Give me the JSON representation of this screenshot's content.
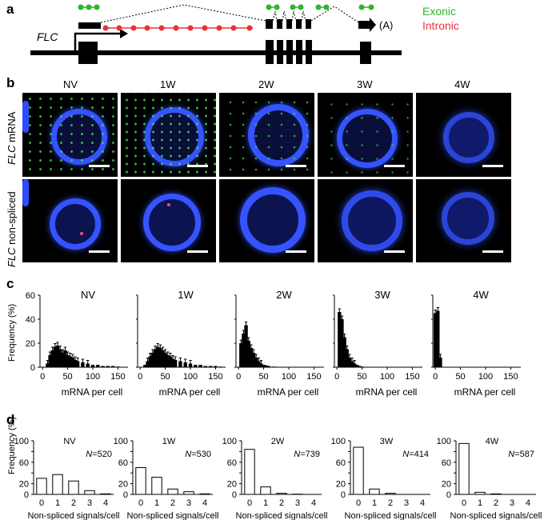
{
  "panel_a": {
    "label": "a",
    "gene": "FLC",
    "polyA": "(A)",
    "legend_exonic": "Exonic",
    "legend_intronic": "Intronic",
    "color_exonic": "#2db52d",
    "color_intronic": "#e8333a"
  },
  "panel_b": {
    "label": "b",
    "conditions": [
      "NV",
      "1W",
      "2W",
      "3W",
      "4W"
    ],
    "row1_label_gene": "FLC",
    "row1_label_rest": " mRNA",
    "row2_label_gene": "FLC",
    "row2_label_rest": " non-spliced",
    "dapi_color": "#2d4cff"
  },
  "panel_c": {
    "label": "c",
    "ylabel": "Frequency (%)",
    "xlabel": "mRNA per cell",
    "chart_data": [
      {
        "type": "bar",
        "title": "NV",
        "x": [
          10,
          15,
          20,
          25,
          30,
          35,
          40,
          45,
          50,
          55,
          60,
          65,
          70,
          80,
          90,
          100,
          110,
          120,
          130,
          140,
          150
        ],
        "values": [
          3,
          10,
          14,
          17,
          18,
          15,
          12,
          14,
          10,
          9,
          8,
          6,
          5,
          4,
          3,
          2,
          2,
          1,
          1,
          1,
          0.5
        ],
        "ylim": [
          0,
          60
        ],
        "xlim": [
          -5,
          170
        ],
        "xticks": [
          0,
          50,
          100,
          150
        ],
        "yticks": [
          0,
          20,
          40,
          60
        ]
      },
      {
        "type": "bar",
        "title": "1W",
        "x": [
          10,
          15,
          20,
          25,
          30,
          35,
          40,
          45,
          50,
          55,
          60,
          65,
          70,
          80,
          90,
          100,
          110,
          120,
          130,
          140,
          150,
          160
        ],
        "values": [
          2,
          5,
          9,
          12,
          15,
          17,
          16,
          14,
          12,
          10,
          9,
          7,
          6,
          5,
          4,
          3,
          2,
          2,
          1,
          1,
          1,
          0.5
        ],
        "ylim": [
          0,
          60
        ],
        "xlim": [
          -5,
          170
        ],
        "xticks": [
          0,
          50,
          100,
          150
        ],
        "yticks": [
          0,
          20,
          40,
          60
        ]
      },
      {
        "type": "bar",
        "title": "2W",
        "x": [
          5,
          10,
          15,
          20,
          25,
          30,
          35,
          40,
          45,
          50,
          55,
          60,
          70,
          80
        ],
        "values": [
          20,
          28,
          35,
          22,
          16,
          12,
          8,
          5,
          3,
          2,
          1.5,
          1,
          0.5,
          0.3
        ],
        "ylim": [
          0,
          60
        ],
        "xlim": [
          -5,
          170
        ],
        "xticks": [
          0,
          50,
          100,
          150
        ],
        "yticks": [
          0,
          20,
          40,
          60
        ]
      },
      {
        "type": "bar",
        "title": "3W",
        "x": [
          5,
          10,
          15,
          20,
          25,
          30,
          35,
          40,
          45,
          50
        ],
        "values": [
          46,
          40,
          25,
          15,
          8,
          5,
          3,
          2,
          1,
          0.5
        ],
        "ylim": [
          0,
          60
        ],
        "xlim": [
          -5,
          170
        ],
        "xticks": [
          0,
          50,
          100,
          150
        ],
        "yticks": [
          0,
          20,
          40,
          60
        ]
      },
      {
        "type": "bar",
        "title": "4W",
        "x": [
          0,
          5,
          10
        ],
        "values": [
          45,
          47,
          8
        ],
        "ylim": [
          0,
          60
        ],
        "xlim": [
          -5,
          170
        ],
        "xticks": [
          0,
          50,
          100,
          150
        ],
        "yticks": [
          0,
          20,
          40,
          60
        ]
      }
    ]
  },
  "panel_d": {
    "label": "d",
    "ylabel": "Frequency (%)",
    "xlabel": "Non-spliced signals/cell",
    "chart_data": [
      {
        "type": "bar",
        "title": "NV",
        "n": "=520",
        "categories": [
          "0",
          "1",
          "2",
          "3",
          "4"
        ],
        "values": [
          30,
          37,
          25,
          7,
          1
        ],
        "ylim": [
          0,
          100
        ],
        "yticks": [
          0,
          20,
          40,
          60,
          80,
          100
        ]
      },
      {
        "type": "bar",
        "title": "1W",
        "n": "=530",
        "categories": [
          "0",
          "1",
          "2",
          "3",
          "4"
        ],
        "values": [
          50,
          32,
          10,
          5,
          1
        ],
        "ylim": [
          0,
          100
        ],
        "yticks": [
          0,
          20,
          40,
          60,
          80,
          100
        ]
      },
      {
        "type": "bar",
        "title": "2W",
        "n": "=739",
        "categories": [
          "0",
          "1",
          "2",
          "3",
          "4"
        ],
        "values": [
          84,
          14,
          2,
          0.5,
          0
        ],
        "ylim": [
          0,
          100
        ],
        "yticks": [
          0,
          20,
          40,
          60,
          80,
          100
        ]
      },
      {
        "type": "bar",
        "title": "3W",
        "n": "=414",
        "categories": [
          "0",
          "1",
          "2",
          "3",
          "4"
        ],
        "values": [
          88,
          10,
          2,
          0,
          0
        ],
        "ylim": [
          0,
          100
        ],
        "yticks": [
          0,
          20,
          40,
          60,
          80,
          100
        ]
      },
      {
        "type": "bar",
        "title": "4W",
        "n": "=587",
        "categories": [
          "0",
          "1",
          "2",
          "3",
          "4"
        ],
        "values": [
          95,
          4,
          1,
          0,
          0
        ],
        "ylim": [
          0,
          100
        ],
        "yticks": [
          0,
          20,
          40,
          60,
          80,
          100
        ]
      }
    ]
  }
}
